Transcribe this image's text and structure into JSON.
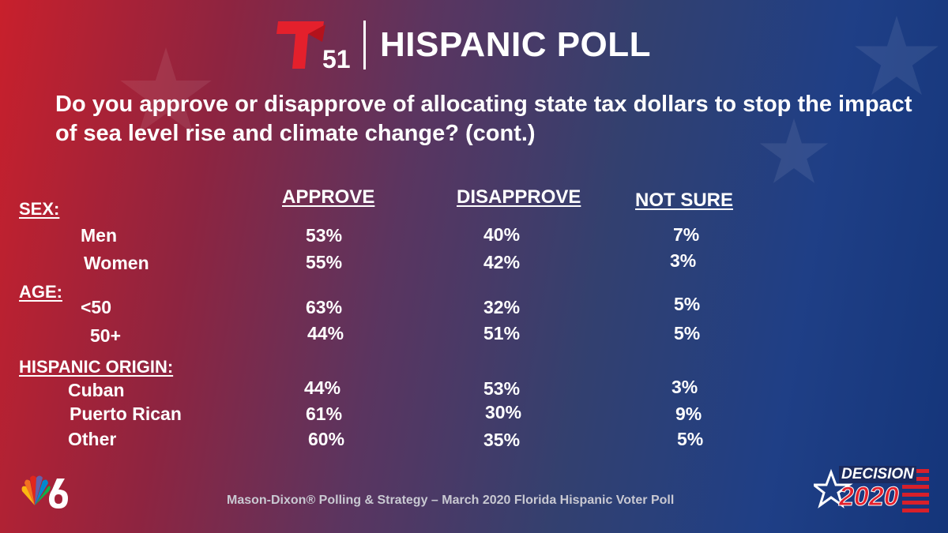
{
  "header": {
    "logo_number": "51",
    "title": "HISPANIC POLL"
  },
  "question": "Do you approve or disapprove of allocating state tax dollars to stop the impact of sea level rise and climate change?  (cont.)",
  "columns": {
    "approve": "APPROVE",
    "disapprove": "DISAPPROVE",
    "not_sure": "NOT SURE"
  },
  "groups": {
    "sex": "SEX:",
    "age": "AGE:",
    "origin": "HISPANIC ORIGIN:"
  },
  "rows": [
    {
      "label": "Men",
      "approve": "53%",
      "disapprove": "40%",
      "not_sure": "7%"
    },
    {
      "label": "Women",
      "approve": "55%",
      "disapprove": "42%",
      "not_sure": "3%"
    },
    {
      "label": "<50",
      "approve": "63%",
      "disapprove": "32%",
      "not_sure": "5%"
    },
    {
      "label": "50+",
      "approve": "44%",
      "disapprove": "51%",
      "not_sure": "5%"
    },
    {
      "label": "Cuban",
      "approve": "44%",
      "disapprove": "53%",
      "not_sure": "3%"
    },
    {
      "label": "Puerto Rican",
      "approve": "61%",
      "disapprove": "30%",
      "not_sure": "9%"
    },
    {
      "label": "Other",
      "approve": "60%",
      "disapprove": "35%",
      "not_sure": "5%"
    }
  ],
  "footer": "Mason-Dixon® Polling & Strategy – March 2020 Florida Hispanic Voter Poll",
  "decision_badge": {
    "word": "DECISION",
    "year": "2020"
  },
  "colors": {
    "telemundo_red": "#e4202c",
    "nbc_yellow": "#fcb711",
    "nbc_orange": "#f37021",
    "nbc_red": "#e1261c",
    "nbc_purple": "#6460aa",
    "nbc_blue": "#0089d0",
    "nbc_green": "#0db14b"
  },
  "icons": {
    "logo": "telemundo-t-icon",
    "network": "nbc-peacock-icon",
    "badge": "decision-2020-icon"
  }
}
